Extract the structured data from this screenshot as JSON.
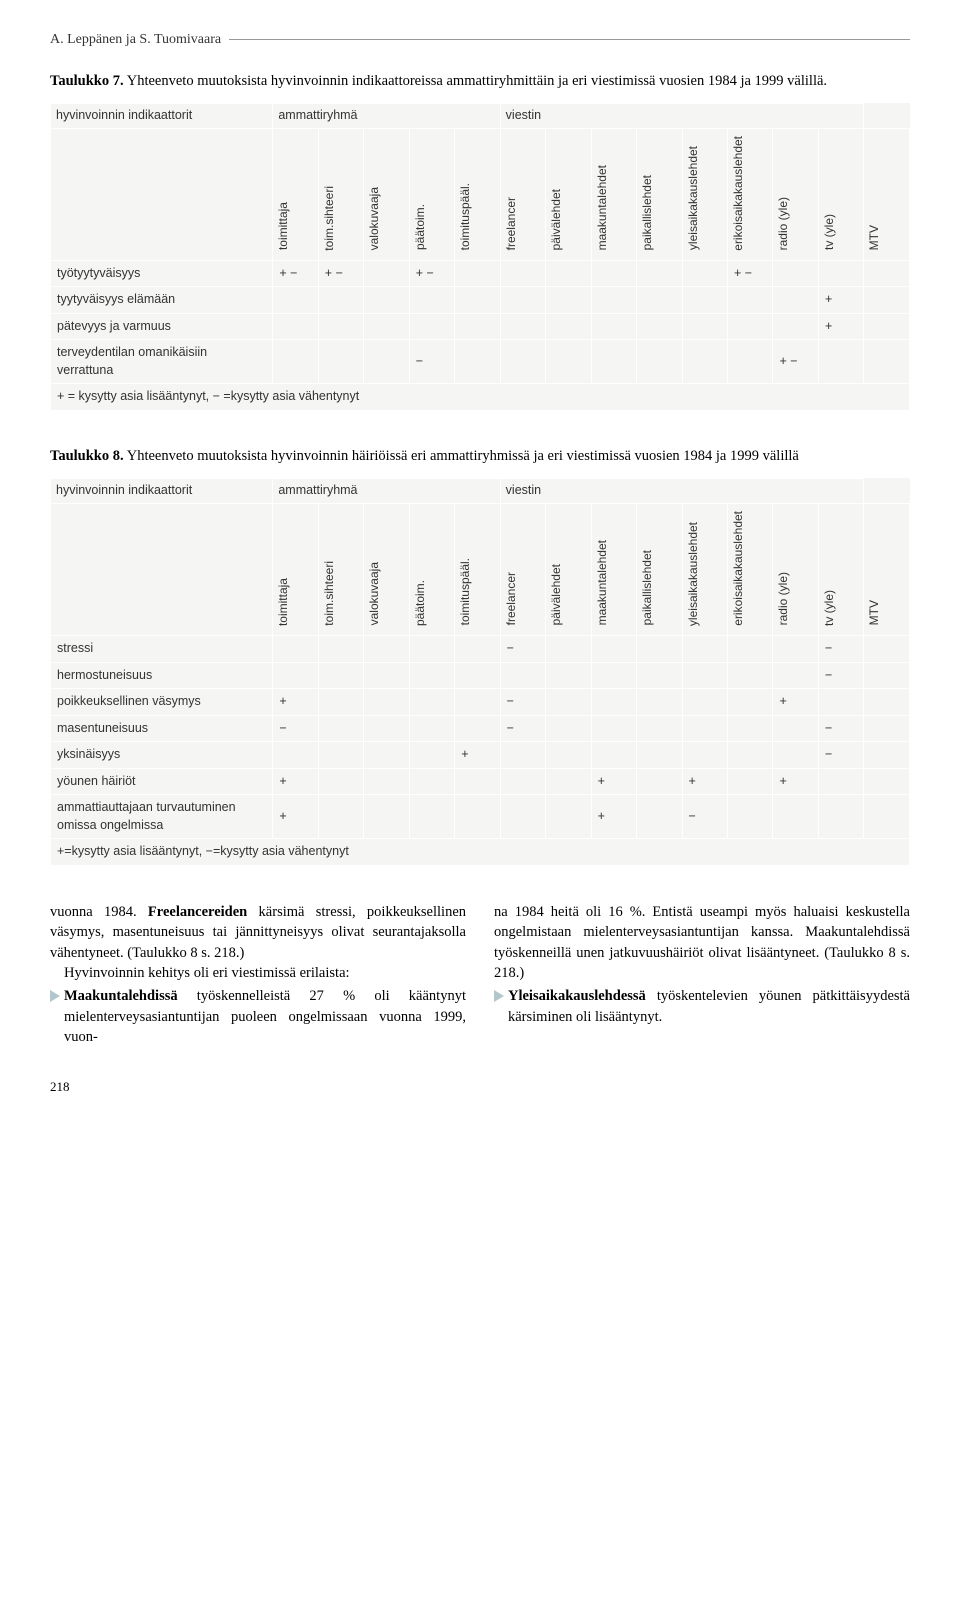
{
  "header_author": "A. Leppänen ja S. Tuomivaara",
  "table7": {
    "caption_bold": "Taulukko 7.",
    "caption_rest": " Yhteenveto muutoksista hyvinvoinnin indikaattoreissa ammattiryhmittäin ja eri viestimissä vuosien 1984 ja 1999 välillä.",
    "group_labels": [
      "hyvinvoinnin indikaattorit",
      "ammattiryhmä",
      "viestin"
    ],
    "group_spans": [
      1,
      5,
      8
    ],
    "columns": [
      "toimittaja",
      "toim.sihteeri",
      "valokuvaaja",
      "päätoim.",
      "toimituspääl.",
      "freelancer",
      "päivälehdet",
      "maakuntalehdet",
      "paikallislehdet",
      "yleisaikakauslehdet",
      "erikoisaikakauslehdet",
      "radio (yle)",
      "tv (yle)",
      "MTV"
    ],
    "rows": [
      {
        "label": "työtyytyväisyys",
        "cells": [
          "+ −",
          "+ −",
          "",
          "+ −",
          "",
          "",
          "",
          "",
          "",
          "",
          "+ −",
          "",
          "",
          ""
        ]
      },
      {
        "label": "tyytyväisyys elämään",
        "cells": [
          "",
          "",
          "",
          "",
          "",
          "",
          "",
          "",
          "",
          "",
          "",
          "",
          "+",
          ""
        ]
      },
      {
        "label": "pätevyys ja varmuus",
        "cells": [
          "",
          "",
          "",
          "",
          "",
          "",
          "",
          "",
          "",
          "",
          "",
          "",
          "+",
          ""
        ]
      },
      {
        "label": "terveydentilan omanikäisiin verrattuna",
        "cells": [
          "",
          "",
          "",
          "−",
          "",
          "",
          "",
          "",
          "",
          "",
          "",
          "+ −",
          "",
          ""
        ]
      }
    ],
    "footnote": "+ = kysytty asia lisääntynyt, − =kysytty asia vähentynyt"
  },
  "table8": {
    "caption_bold": "Taulukko 8.",
    "caption_rest": " Yhteenveto muutoksista hyvinvoinnin häiriöissä eri ammattiryhmissä ja eri viestimissä vuosien 1984 ja 1999 välillä",
    "group_labels": [
      "hyvinvoinnin indikaattorit",
      "ammattiryhmä",
      "viestin"
    ],
    "group_spans": [
      1,
      5,
      8
    ],
    "columns": [
      "toimittaja",
      "toim.sihteeri",
      "valokuvaaja",
      "päätoim.",
      "toimituspääl.",
      "freelancer",
      "päivälehdet",
      "maakuntalehdet",
      "paikallislehdet",
      "yleisaikakauslehdet",
      "erikoisaikakauslehdet",
      "radio (yle)",
      "tv (yle)",
      "MTV"
    ],
    "rows": [
      {
        "label": "stressi",
        "cells": [
          "",
          "",
          "",
          "",
          "",
          "−",
          "",
          "",
          "",
          "",
          "",
          "",
          "−",
          ""
        ]
      },
      {
        "label": "hermostuneisuus",
        "cells": [
          "",
          "",
          "",
          "",
          "",
          "",
          "",
          "",
          "",
          "",
          "",
          "",
          "−",
          ""
        ]
      },
      {
        "label": "poikkeuksellinen väsymys",
        "cells": [
          "+",
          "",
          "",
          "",
          "",
          "−",
          "",
          "",
          "",
          "",
          "",
          "+",
          "",
          ""
        ]
      },
      {
        "label": "masentuneisuus",
        "cells": [
          "−",
          "",
          "",
          "",
          "",
          "−",
          "",
          "",
          "",
          "",
          "",
          "",
          "−",
          ""
        ]
      },
      {
        "label": "yksinäisyys",
        "cells": [
          "",
          "",
          "",
          "",
          "+",
          "",
          "",
          "",
          "",
          "",
          "",
          "",
          "−",
          ""
        ]
      },
      {
        "label": "yöunen häiriöt",
        "cells": [
          "+",
          "",
          "",
          "",
          "",
          "",
          "",
          "+",
          "",
          "+",
          "",
          "+",
          "",
          ""
        ]
      },
      {
        "label": "ammattiauttajaan turvautuminen omissa ongelmissa",
        "cells": [
          "+",
          "",
          "",
          "",
          "",
          "",
          "",
          "+",
          "",
          "−",
          "",
          "",
          "",
          ""
        ]
      }
    ],
    "footnote": "+=kysytty asia lisääntynyt, −=kysytty asia vähentynyt"
  },
  "bodytext": {
    "left_p1_a": "vuonna 1984. ",
    "left_p1_bold": "Freelancereiden",
    "left_p1_b": " kärsimä stressi, poikkeuksellinen väsymys, masentuneisuus tai jännittyneisyys olivat seurantajaksolla vähentyneet. (Taulukko 8 s. 218.)",
    "left_p2": "Hyvinvoinnin kehitys oli eri viestimissä erilaista:",
    "left_bullet_bold": "Maakuntalehdissä",
    "left_bullet_rest": " työskennelleistä 27 % oli kääntynyt mielenterveysasiantuntijan puoleen ongelmissaan vuonna 1999, vuon-",
    "right_p1": "na 1984  heitä oli 16 %. Entistä useampi myös haluaisi keskustella ongelmistaan mielenterveysasiantuntijan kanssa. Maakuntalehdissä työskenneillä unen jatkuvuushäiriöt olivat lisääntyneet. (Taulukko 8 s. 218.)",
    "right_bullet_bold": "Yleisaikakauslehdessä",
    "right_bullet_rest": " työskentelevien yöunen pätkittäisyydestä kärsiminen oli lisääntynyt."
  },
  "pagenum": "218"
}
